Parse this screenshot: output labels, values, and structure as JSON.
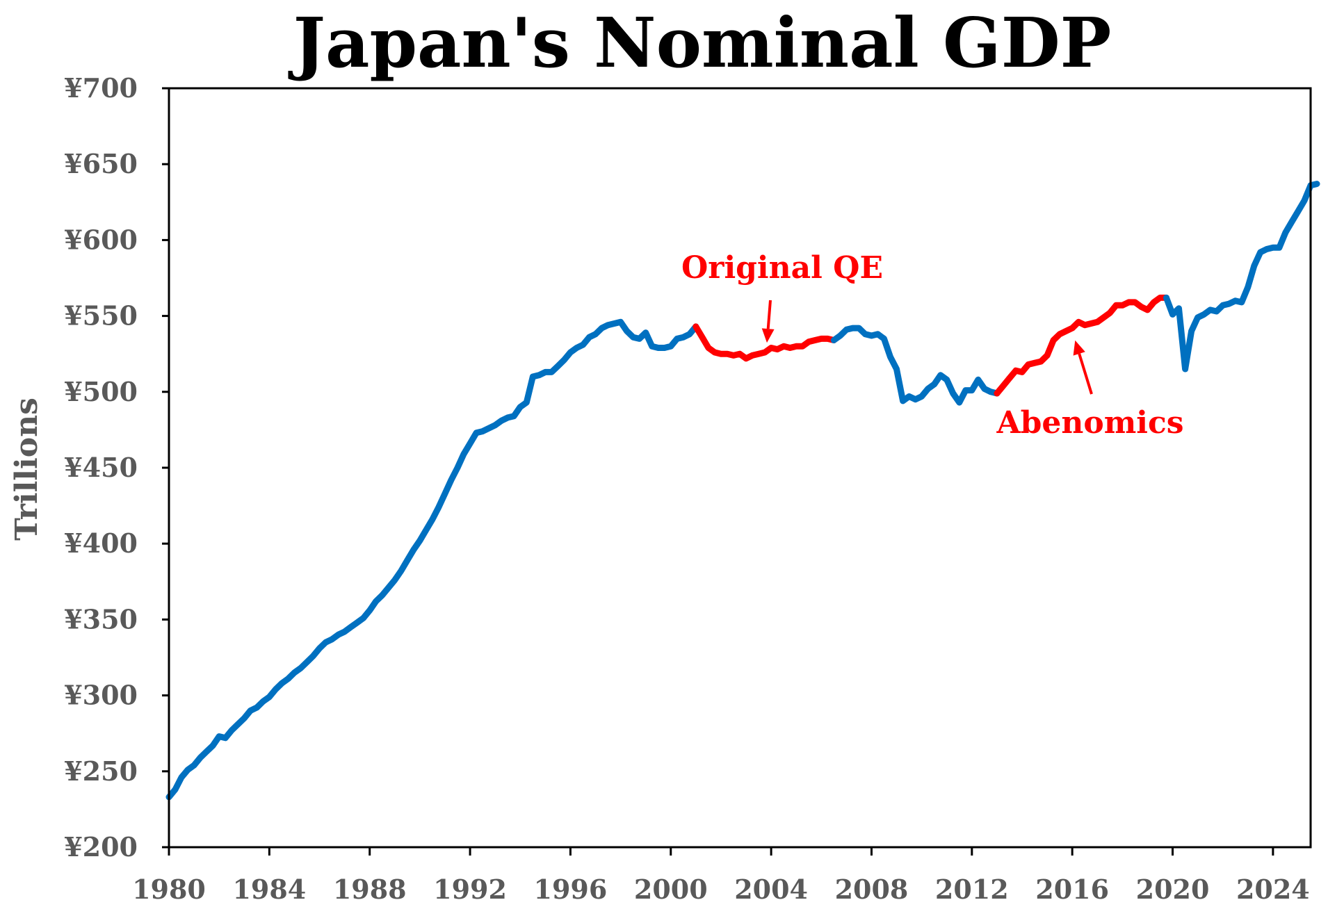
{
  "chart_data": {
    "type": "line",
    "title": "Japan's Nominal GDP",
    "xlabel": "",
    "ylabel": "Trillions",
    "xlim": [
      1980,
      2025.5
    ],
    "ylim": [
      200,
      700
    ],
    "x_ticks": [
      "1980",
      "1984",
      "1988",
      "1992",
      "1996",
      "2000",
      "2004",
      "2008",
      "2012",
      "2016",
      "2020",
      "2024"
    ],
    "y_ticks": [
      "¥200",
      "¥250",
      "¥300",
      "¥350",
      "¥400",
      "¥450",
      "¥500",
      "¥550",
      "¥600",
      "¥650",
      "¥700"
    ],
    "grid": false,
    "colors": {
      "base": "#0070c0",
      "highlight": "#ff0000"
    },
    "series": [
      {
        "color": "#0070c0",
        "points": [
          [
            1980.0,
            233
          ],
          [
            1980.25,
            238
          ],
          [
            1980.5,
            246
          ],
          [
            1980.75,
            251
          ],
          [
            1981.0,
            254
          ],
          [
            1981.25,
            259
          ],
          [
            1981.5,
            263
          ],
          [
            1981.75,
            267
          ],
          [
            1982.0,
            273
          ],
          [
            1982.25,
            272
          ],
          [
            1982.5,
            277
          ],
          [
            1982.75,
            281
          ],
          [
            1983.0,
            285
          ],
          [
            1983.25,
            290
          ],
          [
            1983.5,
            292
          ],
          [
            1983.75,
            296
          ],
          [
            1984.0,
            299
          ],
          [
            1984.25,
            304
          ],
          [
            1984.5,
            308
          ],
          [
            1984.75,
            311
          ],
          [
            1985.0,
            315
          ],
          [
            1985.25,
            318
          ],
          [
            1985.5,
            322
          ],
          [
            1985.75,
            326
          ],
          [
            1986.0,
            331
          ],
          [
            1986.25,
            335
          ],
          [
            1986.5,
            337
          ],
          [
            1986.75,
            340
          ],
          [
            1987.0,
            342
          ],
          [
            1987.25,
            345
          ],
          [
            1987.5,
            348
          ],
          [
            1987.75,
            351
          ],
          [
            1988.0,
            356
          ],
          [
            1988.25,
            362
          ],
          [
            1988.5,
            366
          ],
          [
            1988.75,
            371
          ],
          [
            1989.0,
            376
          ],
          [
            1989.25,
            382
          ],
          [
            1989.5,
            389
          ],
          [
            1989.75,
            396
          ],
          [
            1990.0,
            402
          ],
          [
            1990.25,
            409
          ],
          [
            1990.5,
            416
          ],
          [
            1990.75,
            424
          ],
          [
            1991.0,
            433
          ],
          [
            1991.25,
            442
          ],
          [
            1991.5,
            450
          ],
          [
            1991.75,
            459
          ],
          [
            1992.0,
            466
          ],
          [
            1992.25,
            473
          ],
          [
            1992.5,
            474
          ],
          [
            1992.75,
            476
          ],
          [
            1993.0,
            478
          ],
          [
            1993.25,
            481
          ],
          [
            1993.5,
            483
          ],
          [
            1993.75,
            484
          ],
          [
            1994.0,
            490
          ],
          [
            1994.25,
            493
          ],
          [
            1994.5,
            510
          ],
          [
            1994.75,
            511
          ],
          [
            1995.0,
            513
          ],
          [
            1995.25,
            513
          ],
          [
            1995.5,
            517
          ],
          [
            1995.75,
            521
          ],
          [
            1996.0,
            526
          ],
          [
            1996.25,
            529
          ],
          [
            1996.5,
            531
          ],
          [
            1996.75,
            536
          ],
          [
            1997.0,
            538
          ],
          [
            1997.25,
            542
          ],
          [
            1997.5,
            544
          ],
          [
            1997.75,
            545
          ],
          [
            1998.0,
            546
          ],
          [
            1998.25,
            540
          ],
          [
            1998.5,
            536
          ],
          [
            1998.75,
            535
          ],
          [
            1999.0,
            539
          ],
          [
            1999.25,
            530
          ],
          [
            1999.5,
            529
          ],
          [
            1999.75,
            529
          ],
          [
            2000.0,
            530
          ],
          [
            2000.25,
            535
          ],
          [
            2000.5,
            536
          ],
          [
            2000.75,
            538
          ],
          [
            2001.0,
            543
          ]
        ]
      },
      {
        "color": "#ff0000",
        "points": [
          [
            2001.0,
            543
          ],
          [
            2001.25,
            536
          ],
          [
            2001.5,
            529
          ],
          [
            2001.75,
            526
          ],
          [
            2002.0,
            525
          ],
          [
            2002.25,
            525
          ],
          [
            2002.5,
            524
          ],
          [
            2002.75,
            525
          ],
          [
            2003.0,
            522
          ],
          [
            2003.25,
            524
          ],
          [
            2003.5,
            525
          ],
          [
            2003.75,
            526
          ],
          [
            2004.0,
            529
          ],
          [
            2004.25,
            528
          ],
          [
            2004.5,
            530
          ],
          [
            2004.75,
            529
          ],
          [
            2005.0,
            530
          ],
          [
            2005.25,
            530
          ],
          [
            2005.5,
            533
          ],
          [
            2005.75,
            534
          ],
          [
            2006.0,
            535
          ],
          [
            2006.25,
            535
          ],
          [
            2006.5,
            534
          ]
        ]
      },
      {
        "color": "#0070c0",
        "points": [
          [
            2006.5,
            534
          ],
          [
            2006.75,
            537
          ],
          [
            2007.0,
            541
          ],
          [
            2007.25,
            542
          ],
          [
            2007.5,
            542
          ],
          [
            2007.75,
            538
          ],
          [
            2008.0,
            537
          ],
          [
            2008.25,
            538
          ],
          [
            2008.5,
            535
          ],
          [
            2008.75,
            523
          ],
          [
            2009.0,
            515
          ],
          [
            2009.25,
            494
          ],
          [
            2009.5,
            497
          ],
          [
            2009.75,
            495
          ],
          [
            2010.0,
            497
          ],
          [
            2010.25,
            502
          ],
          [
            2010.5,
            505
          ],
          [
            2010.75,
            511
          ],
          [
            2011.0,
            508
          ],
          [
            2011.25,
            499
          ],
          [
            2011.5,
            493
          ],
          [
            2011.75,
            501
          ],
          [
            2012.0,
            501
          ],
          [
            2012.25,
            508
          ],
          [
            2012.5,
            502
          ],
          [
            2012.75,
            500
          ],
          [
            2013.0,
            499
          ]
        ]
      },
      {
        "color": "#ff0000",
        "points": [
          [
            2013.0,
            499
          ],
          [
            2013.25,
            504
          ],
          [
            2013.5,
            509
          ],
          [
            2013.75,
            514
          ],
          [
            2014.0,
            513
          ],
          [
            2014.25,
            518
          ],
          [
            2014.5,
            519
          ],
          [
            2014.75,
            520
          ],
          [
            2015.0,
            524
          ],
          [
            2015.25,
            534
          ],
          [
            2015.5,
            538
          ],
          [
            2015.75,
            540
          ],
          [
            2016.0,
            542
          ],
          [
            2016.25,
            546
          ],
          [
            2016.5,
            544
          ],
          [
            2016.75,
            545
          ],
          [
            2017.0,
            546
          ],
          [
            2017.25,
            549
          ],
          [
            2017.5,
            552
          ],
          [
            2017.75,
            557
          ],
          [
            2018.0,
            557
          ],
          [
            2018.25,
            559
          ],
          [
            2018.5,
            559
          ],
          [
            2018.75,
            556
          ],
          [
            2019.0,
            554
          ],
          [
            2019.25,
            559
          ],
          [
            2019.5,
            562
          ],
          [
            2019.75,
            562
          ]
        ]
      },
      {
        "color": "#0070c0",
        "points": [
          [
            2019.75,
            562
          ],
          [
            2020.0,
            551
          ],
          [
            2020.25,
            555
          ],
          [
            2020.5,
            515
          ],
          [
            2020.75,
            540
          ],
          [
            2021.0,
            549
          ],
          [
            2021.25,
            551
          ],
          [
            2021.5,
            554
          ],
          [
            2021.75,
            553
          ],
          [
            2022.0,
            557
          ],
          [
            2022.25,
            558
          ],
          [
            2022.5,
            560
          ],
          [
            2022.75,
            559
          ],
          [
            2023.0,
            569
          ],
          [
            2023.25,
            583
          ],
          [
            2023.5,
            592
          ],
          [
            2023.75,
            594
          ],
          [
            2024.0,
            595
          ],
          [
            2024.25,
            595
          ],
          [
            2024.5,
            605
          ],
          [
            2024.75,
            612
          ],
          [
            2025.0,
            619
          ],
          [
            2025.25,
            626
          ],
          [
            2025.5,
            636
          ],
          [
            2025.75,
            637
          ]
        ]
      }
    ],
    "annotations": [
      {
        "text": "Original QE",
        "color": "#ff0000",
        "arrow_to": [
          2003.8,
          526
        ]
      },
      {
        "text": "Abenomics",
        "color": "#ff0000",
        "arrow_to": [
          2016.0,
          540
        ]
      }
    ]
  }
}
